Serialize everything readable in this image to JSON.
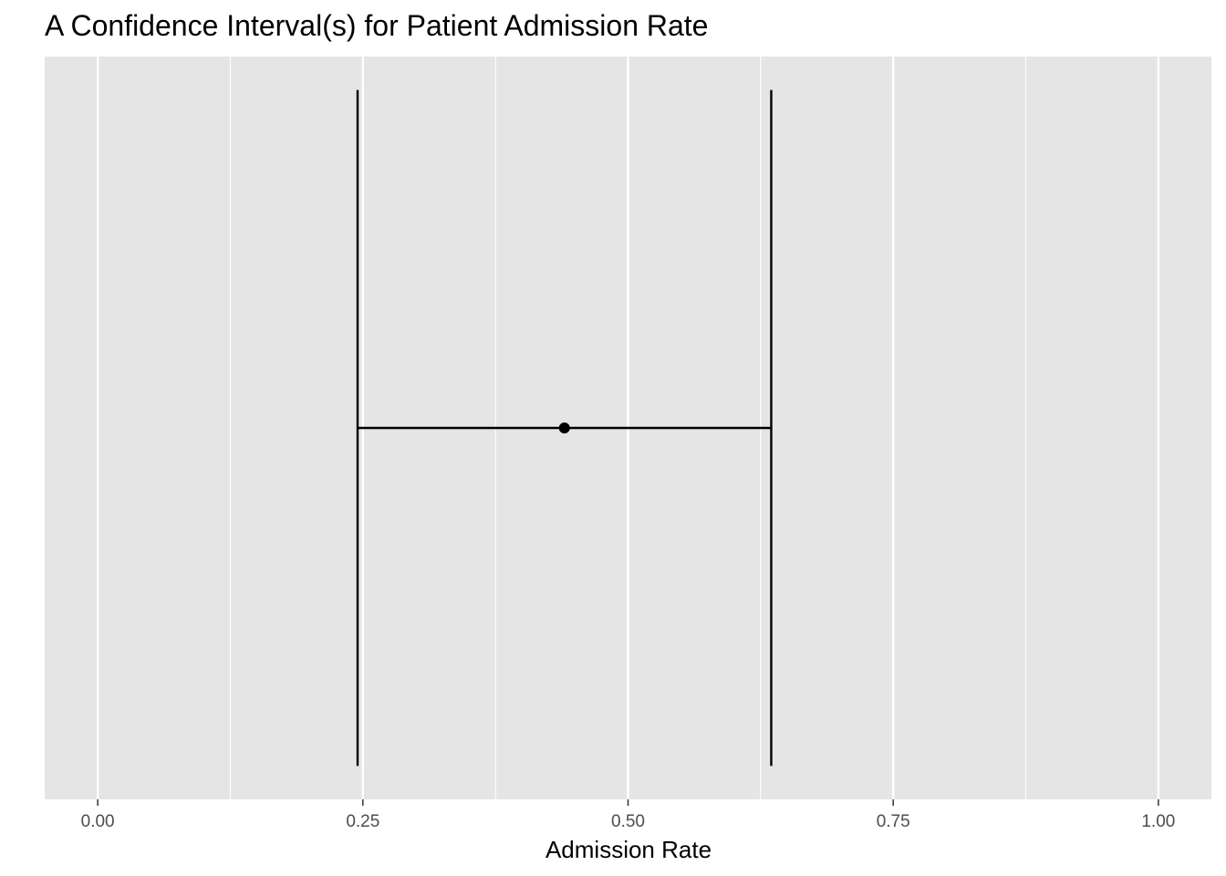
{
  "chart_data": {
    "type": "errorbar",
    "title": "A Confidence Interval(s) for Patient Admission Rate",
    "xlabel": "Admission Rate",
    "ylabel": "",
    "xlim": [
      -0.05,
      1.05
    ],
    "x_ticks": [
      0.0,
      0.25,
      0.5,
      0.75,
      1.0
    ],
    "x_tick_labels": [
      "0.00",
      "0.25",
      "0.50",
      "0.75",
      "1.00"
    ],
    "x_minor_ticks": [
      0.125,
      0.375,
      0.625,
      0.875
    ],
    "grid": true,
    "intervals": [
      {
        "estimate": 0.44,
        "lower": 0.245,
        "upper": 0.635
      }
    ],
    "colors": {
      "panel_background": "#e5e5e5",
      "grid": "#ffffff",
      "interval": "#000000",
      "tick_label": "#4d4d4d"
    }
  }
}
